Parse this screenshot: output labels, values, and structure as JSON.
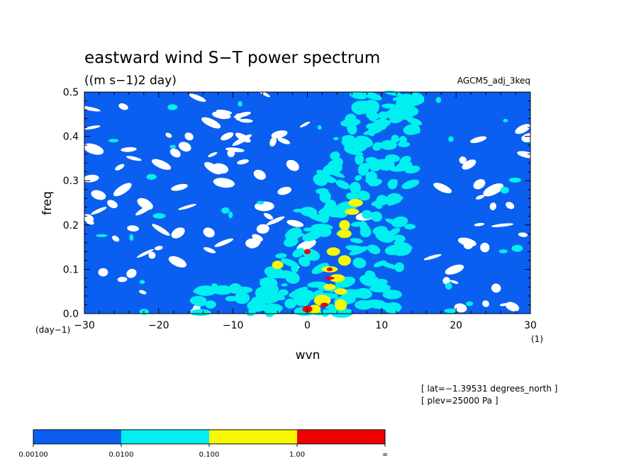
{
  "chart_data": {
    "type": "heatmap",
    "title": "eastward wind S−T power spectrum",
    "subtitle": "((m s−1)2 day)",
    "model_label": "AGCM5_adj_3keq",
    "xlabel": "wvn",
    "ylabel": "freq",
    "x_unit_label": "(1)",
    "y_unit_label": "(day−1)",
    "xlim": [
      -30,
      30
    ],
    "ylim": [
      0,
      0.5
    ],
    "x_ticks": [
      -30,
      -20,
      -10,
      0,
      10,
      20,
      30
    ],
    "x_tick_labels": [
      "−30",
      "−20",
      "−10",
      "0",
      "10",
      "20",
      "30"
    ],
    "y_ticks": [
      0.0,
      0.1,
      0.2,
      0.3,
      0.4,
      0.5
    ],
    "y_tick_labels": [
      "0.0",
      "0.1",
      "0.2",
      "0.3",
      "0.4",
      "0.5"
    ],
    "info_lines": [
      "[ lat=−1.39531 degrees_north ]",
      "[ plev=25000 Pa ]"
    ],
    "levels": [
      {
        "range": [
          "0.00100",
          "0.0100"
        ],
        "color": "#0a5ff0"
      },
      {
        "range": [
          "0.0100",
          "0.100"
        ],
        "color": "#00f0f0"
      },
      {
        "range": [
          "0.100",
          "1.00"
        ],
        "color": "#f8f800"
      },
      {
        "range": [
          "1.00",
          "∞"
        ],
        "color": "#f00000"
      }
    ],
    "colorbar_labels": [
      "0.00100",
      "0.0100",
      "0.100",
      "1.00",
      "∞"
    ],
    "background_color": "#ffffff",
    "grid": false,
    "ridge_centers": [
      {
        "freq": 0.0,
        "wvn": 2
      },
      {
        "freq": 0.05,
        "wvn": 3
      },
      {
        "freq": 0.1,
        "wvn": 4
      },
      {
        "freq": 0.15,
        "wvn": 5
      },
      {
        "freq": 0.2,
        "wvn": 5.5
      },
      {
        "freq": 0.25,
        "wvn": 7
      },
      {
        "freq": 0.3,
        "wvn": 8
      },
      {
        "freq": 0.35,
        "wvn": 9
      },
      {
        "freq": 0.4,
        "wvn": 10
      },
      {
        "freq": 0.45,
        "wvn": 10.5
      },
      {
        "freq": 0.5,
        "wvn": 11
      }
    ],
    "yellow_patches": [
      {
        "wvn": 6.5,
        "freq": 0.25
      },
      {
        "wvn": 6,
        "freq": 0.23
      },
      {
        "wvn": 5,
        "freq": 0.2
      },
      {
        "wvn": 5,
        "freq": 0.18
      },
      {
        "wvn": 3.5,
        "freq": 0.14
      },
      {
        "wvn": 5,
        "freq": 0.12
      },
      {
        "wvn": 3,
        "freq": 0.1
      },
      {
        "wvn": 4,
        "freq": 0.08
      },
      {
        "wvn": 3,
        "freq": 0.06
      },
      {
        "wvn": 4.5,
        "freq": 0.05
      },
      {
        "wvn": 2,
        "freq": 0.03
      },
      {
        "wvn": 4.5,
        "freq": 0.02
      },
      {
        "wvn": 1,
        "freq": 0.01
      },
      {
        "wvn": -4,
        "freq": 0.11
      }
    ],
    "red_patches": [
      {
        "wvn": 0,
        "freq": 0.01
      },
      {
        "wvn": 2.3,
        "freq": 0.02
      },
      {
        "wvn": 3,
        "freq": 0.1
      },
      {
        "wvn": 0,
        "freq": 0.14
      },
      {
        "wvn": 3,
        "freq": 0.08
      }
    ]
  }
}
